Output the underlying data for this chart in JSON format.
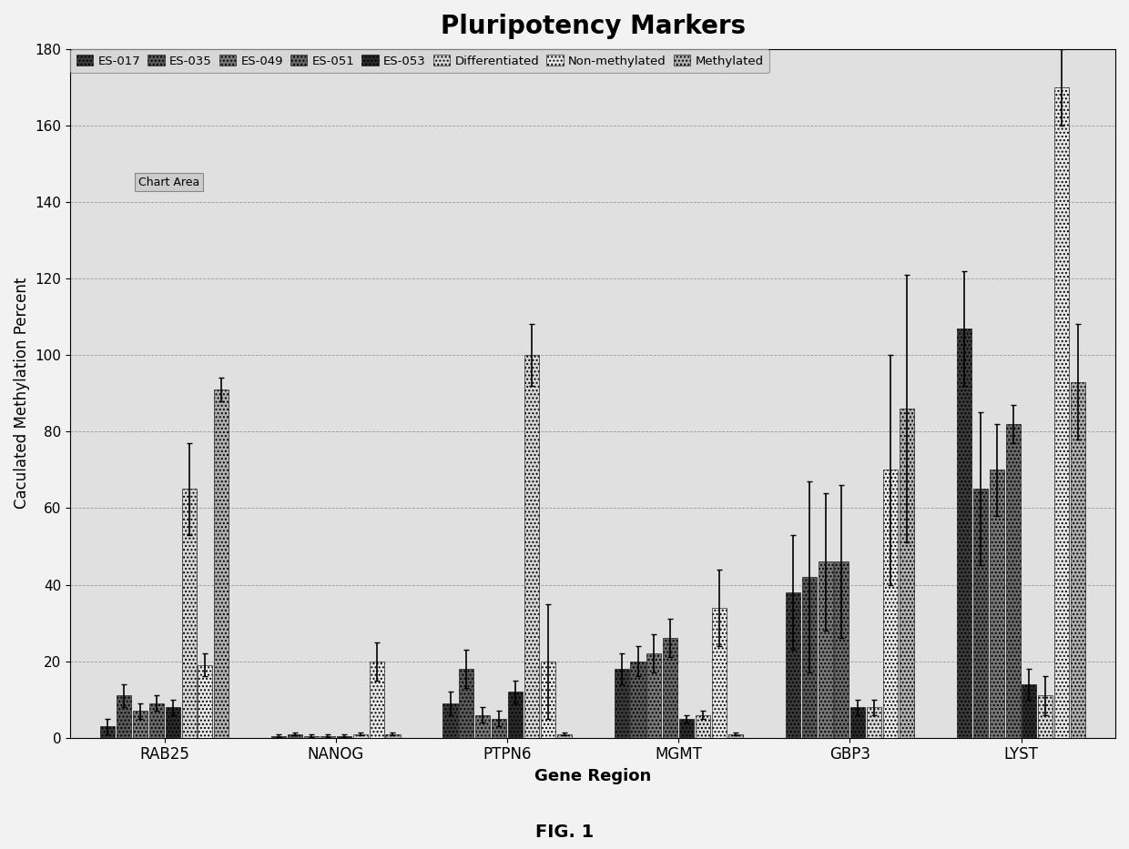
{
  "title": "Pluripotency Markers",
  "xlabel": "Gene Region",
  "ylabel": "Caculated Methylation Percent",
  "fig_label": "FIG. 1",
  "ylim": [
    0,
    180
  ],
  "yticks": [
    0,
    20,
    40,
    60,
    80,
    100,
    120,
    140,
    160,
    180
  ],
  "categories": [
    "RAB25",
    "NANOG",
    "PTPN6",
    "MGMT",
    "GBP3",
    "LYST"
  ],
  "series_labels": [
    "ES-017",
    "ES-035",
    "ES-049",
    "ES-051",
    "ES-053",
    "Differentiated",
    "Non-methylated",
    "Methylated"
  ],
  "values": {
    "RAB25": [
      3,
      11,
      7,
      9,
      8,
      65,
      19,
      91
    ],
    "NANOG": [
      0.5,
      1,
      0.5,
      0.5,
      0.5,
      1,
      20,
      1
    ],
    "PTPN6": [
      9,
      18,
      6,
      5,
      12,
      100,
      20,
      1
    ],
    "MGMT": [
      18,
      20,
      22,
      26,
      5,
      6,
      34,
      1
    ],
    "GBP3": [
      38,
      42,
      46,
      46,
      8,
      8,
      70,
      86
    ],
    "LYST": [
      107,
      65,
      70,
      82,
      14,
      11,
      170,
      93
    ]
  },
  "errors": {
    "RAB25": [
      2,
      3,
      2,
      2,
      2,
      12,
      3,
      3
    ],
    "NANOG": [
      0.3,
      0.3,
      0.3,
      0.3,
      0.3,
      0.3,
      5,
      0.3
    ],
    "PTPN6": [
      3,
      5,
      2,
      2,
      3,
      8,
      15,
      0.3
    ],
    "MGMT": [
      4,
      4,
      5,
      5,
      1,
      1,
      10,
      0.3
    ],
    "GBP3": [
      15,
      25,
      18,
      20,
      2,
      2,
      30,
      35
    ],
    "LYST": [
      15,
      20,
      12,
      5,
      4,
      5,
      10,
      15
    ]
  },
  "chart_area_label": "Chart Area",
  "background_color": "#f2f2f2",
  "plot_bg_color": "#e0e0e0"
}
